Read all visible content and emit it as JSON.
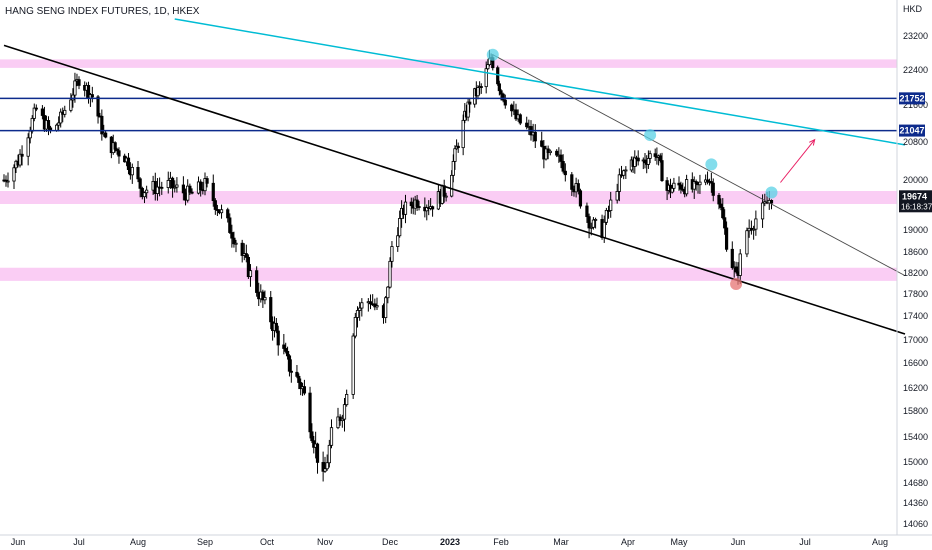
{
  "chart_data": {
    "type": "candlestick",
    "title": "HANG SENG INDEX FUTURES, 1D, HKEX",
    "xlabel": "",
    "ylabel": "HKD",
    "ylim": [
      13900,
      23600
    ],
    "x_range": [
      "2022-05-25",
      "2023-08-15"
    ],
    "grid": false,
    "y_ticks": [
      14060,
      14360,
      14680,
      15000,
      15400,
      15800,
      16200,
      16600,
      17000,
      17400,
      17800,
      18200,
      18600,
      19000,
      20000,
      20800,
      21600,
      22400,
      23200
    ],
    "x_ticks": [
      {
        "label": "Jun",
        "date": "2022-06-01"
      },
      {
        "label": "Jul",
        "date": "2022-07-01"
      },
      {
        "label": "Aug",
        "date": "2022-08-01"
      },
      {
        "label": "Sep",
        "date": "2022-09-01"
      },
      {
        "label": "Oct",
        "date": "2022-10-01"
      },
      {
        "label": "Nov",
        "date": "2022-11-01"
      },
      {
        "label": "Dec",
        "date": "2022-12-01"
      },
      {
        "label": "2023",
        "date": "2023-01-01",
        "bold": true
      },
      {
        "label": "Feb",
        "date": "2023-02-01"
      },
      {
        "label": "Mar",
        "date": "2023-03-01"
      },
      {
        "label": "Apr",
        "date": "2023-04-01"
      },
      {
        "label": "May",
        "date": "2023-05-01"
      },
      {
        "label": "Jun",
        "date": "2023-06-01"
      },
      {
        "label": "Jul",
        "date": "2023-07-01"
      },
      {
        "label": "Aug",
        "date": "2023-08-01"
      }
    ],
    "price_anchors": [
      [
        "2022-05-25",
        20000
      ],
      [
        "2022-06-01",
        20400
      ],
      [
        "2022-06-10",
        21500
      ],
      [
        "2022-06-17",
        21000
      ],
      [
        "2022-06-22",
        21300
      ],
      [
        "2022-07-01",
        22200
      ],
      [
        "2022-07-08",
        21800
      ],
      [
        "2022-07-15",
        20800
      ],
      [
        "2022-07-25",
        20500
      ],
      [
        "2022-08-03",
        19800
      ],
      [
        "2022-08-15",
        19900
      ],
      [
        "2022-08-25",
        19700
      ],
      [
        "2022-09-01",
        19900
      ],
      [
        "2022-09-08",
        19400
      ],
      [
        "2022-09-15",
        18900
      ],
      [
        "2022-09-26",
        17900
      ],
      [
        "2022-10-05",
        17200
      ],
      [
        "2022-10-12",
        16600
      ],
      [
        "2022-10-20",
        16200
      ],
      [
        "2022-10-25",
        15500
      ],
      [
        "2022-10-31",
        14700
      ],
      [
        "2022-11-04",
        15400
      ],
      [
        "2022-11-10",
        15900
      ],
      [
        "2022-11-15",
        17500
      ],
      [
        "2022-11-22",
        17700
      ],
      [
        "2022-11-28",
        17300
      ],
      [
        "2022-12-02",
        18700
      ],
      [
        "2022-12-08",
        19400
      ],
      [
        "2022-12-15",
        19600
      ],
      [
        "2022-12-22",
        19500
      ],
      [
        "2022-12-30",
        19800
      ],
      [
        "2023-01-06",
        20800
      ],
      [
        "2023-01-13",
        21700
      ],
      [
        "2023-01-20",
        22000
      ],
      [
        "2023-01-26",
        22700
      ],
      [
        "2023-02-01",
        21900
      ],
      [
        "2023-02-08",
        21300
      ],
      [
        "2023-02-15",
        21000
      ],
      [
        "2023-02-22",
        20500
      ],
      [
        "2023-03-01",
        20400
      ],
      [
        "2023-03-08",
        19800
      ],
      [
        "2023-03-15",
        19100
      ],
      [
        "2023-03-20",
        19000
      ],
      [
        "2023-03-27",
        19900
      ],
      [
        "2023-04-03",
        20400
      ],
      [
        "2023-04-10",
        20400
      ],
      [
        "2023-04-17",
        20600
      ],
      [
        "2023-04-24",
        19800
      ],
      [
        "2023-05-02",
        19900
      ],
      [
        "2023-05-10",
        19800
      ],
      [
        "2023-05-16",
        20100
      ],
      [
        "2023-05-22",
        19600
      ],
      [
        "2023-05-26",
        18800
      ],
      [
        "2023-05-31",
        18100
      ],
      [
        "2023-06-05",
        19000
      ],
      [
        "2023-06-12",
        19400
      ],
      [
        "2023-06-16",
        19674
      ]
    ],
    "horizontal_zones": [
      {
        "from": 22450,
        "to": 22650,
        "color": "#f9c4f2"
      },
      {
        "from": 19520,
        "to": 19780,
        "color": "#f9c4f2"
      },
      {
        "from": 18050,
        "to": 18300,
        "color": "#f9c4f2"
      }
    ],
    "horizontal_lines": [
      {
        "value": 21752,
        "color": "#0d2b8c",
        "tag": "21752"
      },
      {
        "value": 21047,
        "color": "#0d2b8c",
        "tag": "21047"
      }
    ],
    "trendlines": [
      {
        "name": "long-term-downtrend",
        "color": "#000000",
        "from": [
          "2022-05-25",
          22980
        ],
        "to": [
          "2023-08-15",
          17100
        ]
      },
      {
        "name": "upper-channel",
        "color": "#00bcd4",
        "from": [
          "2022-08-18",
          23600
        ],
        "to": [
          "2023-08-15",
          20740
        ]
      },
      {
        "name": "peak-resistance",
        "color": "#4a4a4a",
        "from": [
          "2023-01-27",
          22760
        ],
        "to": [
          "2023-08-15",
          18150
        ]
      }
    ],
    "projection_arrow": {
      "color": "#e91e63",
      "from": [
        "2023-06-20",
        19950
      ],
      "to": [
        "2023-07-05",
        20850
      ]
    },
    "pivot_markers": [
      {
        "date": "2023-01-27",
        "value": 22760,
        "color": "#5ad1e6"
      },
      {
        "date": "2023-04-14",
        "value": 20950,
        "color": "#5ad1e6"
      },
      {
        "date": "2023-05-18",
        "value": 20330,
        "color": "#5ad1e6"
      },
      {
        "date": "2023-06-16",
        "value": 19750,
        "color": "#5ad1e6"
      },
      {
        "date": "2023-05-31",
        "value": 17990,
        "color": "#e57373"
      }
    ],
    "last_price": {
      "value": 19674,
      "label": "19674",
      "countdown": "16:18:37",
      "color": "#131722"
    },
    "candle_color": "#000000"
  }
}
